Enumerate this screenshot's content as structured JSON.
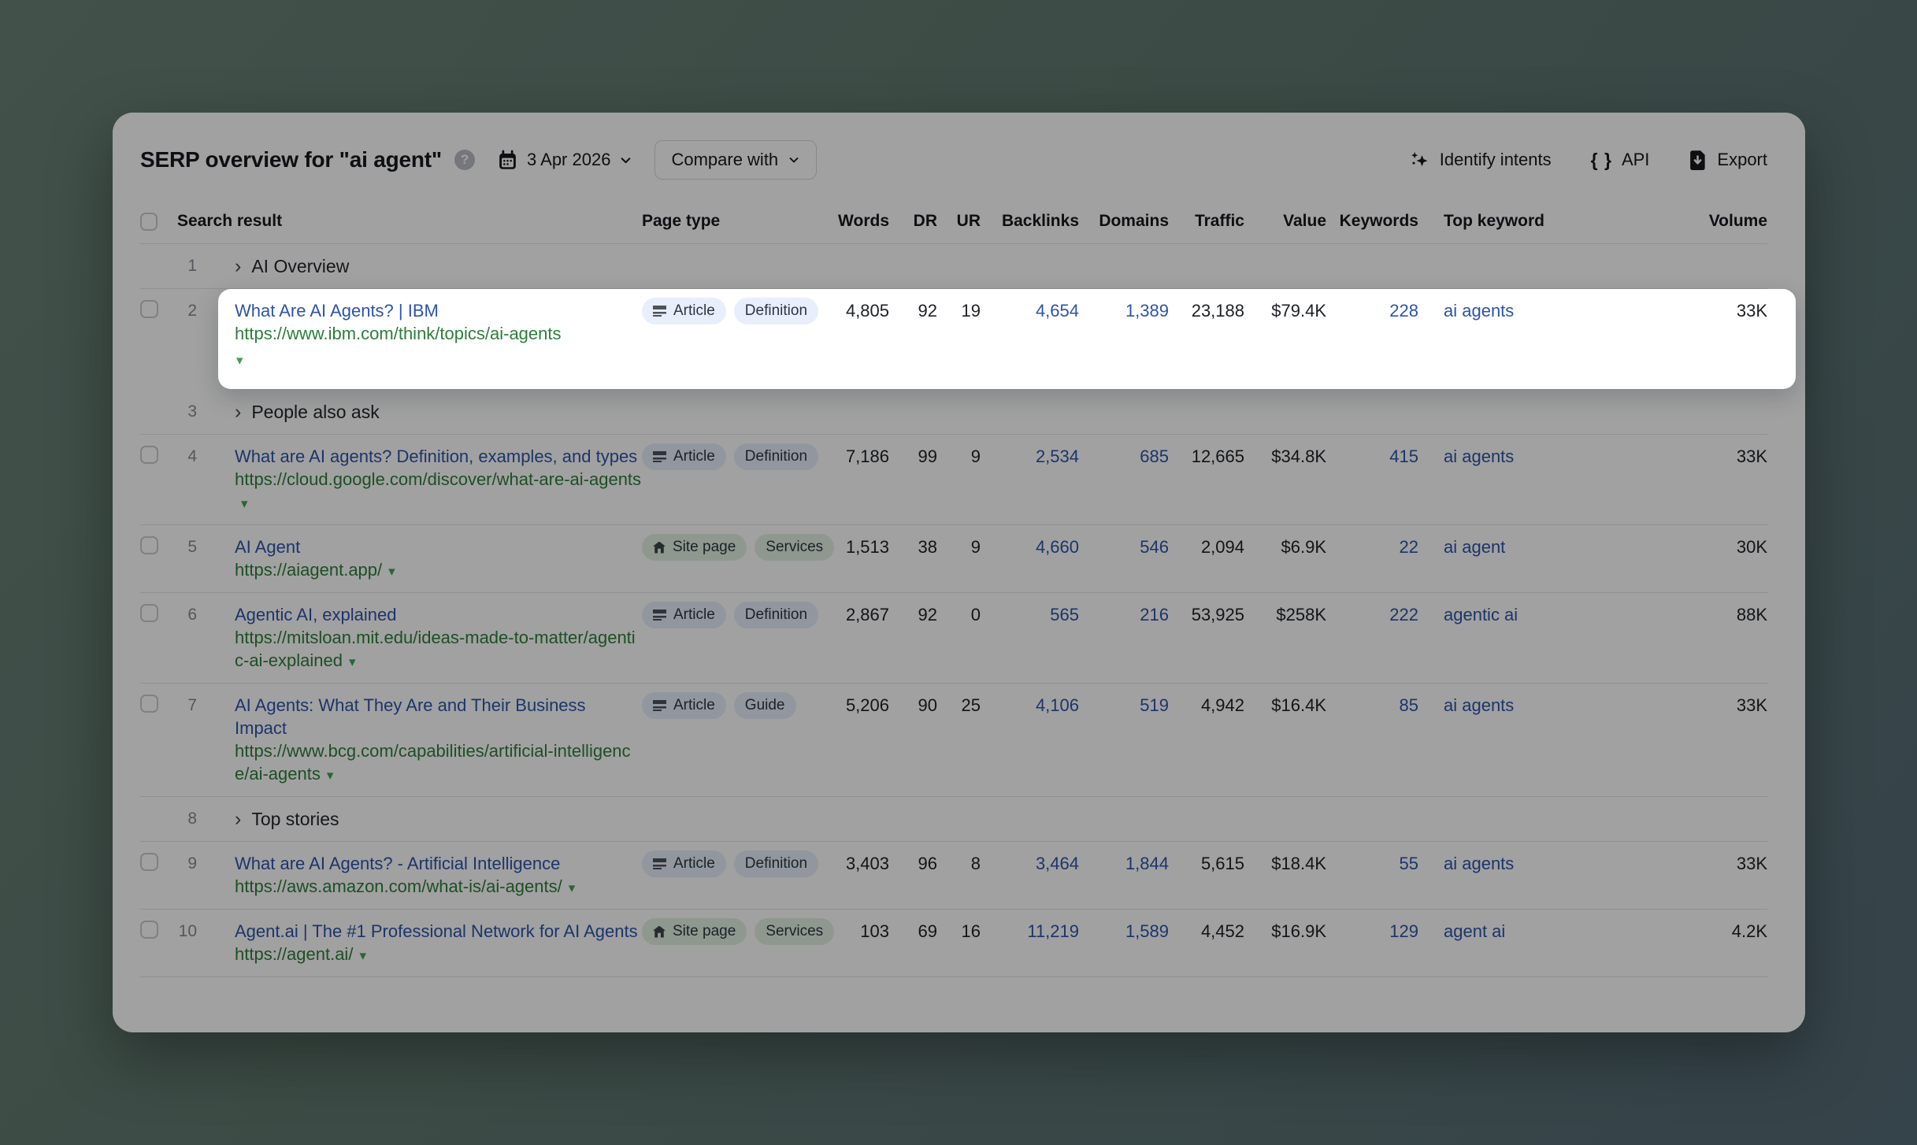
{
  "header": {
    "title": "SERP overview for \"ai agent\"",
    "date": "3 Apr 2026",
    "compare_label": "Compare with",
    "actions": [
      {
        "label": "Identify intents",
        "icon": "sparkles-icon"
      },
      {
        "label": "API",
        "icon": "braces-icon"
      },
      {
        "label": "Export",
        "icon": "export-icon"
      }
    ]
  },
  "table": {
    "columns": [
      "Search result",
      "Page type",
      "Words",
      "DR",
      "UR",
      "Backlinks",
      "Domains",
      "Traffic",
      "Value",
      "Keywords",
      "Top keyword",
      "Volume"
    ],
    "rows": [
      {
        "type": "feature",
        "num": "1",
        "label": "AI Overview"
      },
      {
        "type": "result",
        "num": "2",
        "highlight": true,
        "title": "What Are AI Agents? | IBM",
        "url": "https://www.ibm.com/think/topics/ai-agents",
        "badges": [
          {
            "label": "Article",
            "icon": "article",
            "color": "blue"
          },
          {
            "label": "Definition",
            "color": "blue"
          }
        ],
        "words": "4,805",
        "dr": "92",
        "ur": "19",
        "backlinks": "4,654",
        "domains": "1,389",
        "traffic": "23,188",
        "value": "$79.4K",
        "keywords": "228",
        "top_keyword": "ai agents",
        "volume": "33K"
      },
      {
        "type": "feature",
        "num": "3",
        "label": "People also ask"
      },
      {
        "type": "result",
        "num": "4",
        "title": "What are AI agents? Definition, examples, and types",
        "url": "https://cloud.google.com/discover/what-are-ai-agents",
        "badges": [
          {
            "label": "Article",
            "icon": "article",
            "color": "blue"
          },
          {
            "label": "Definition",
            "color": "blue"
          }
        ],
        "words": "7,186",
        "dr": "99",
        "ur": "9",
        "backlinks": "2,534",
        "domains": "685",
        "traffic": "12,665",
        "value": "$34.8K",
        "keywords": "415",
        "top_keyword": "ai agents",
        "volume": "33K"
      },
      {
        "type": "result",
        "num": "5",
        "title": "AI Agent",
        "url": "https://aiagent.app/",
        "badges": [
          {
            "label": "Site page",
            "icon": "house",
            "color": "green"
          },
          {
            "label": "Services",
            "color": "green"
          }
        ],
        "words": "1,513",
        "dr": "38",
        "ur": "9",
        "backlinks": "4,660",
        "domains": "546",
        "traffic": "2,094",
        "value": "$6.9K",
        "keywords": "22",
        "top_keyword": "ai agent",
        "volume": "30K"
      },
      {
        "type": "result",
        "num": "6",
        "title": "Agentic AI, explained",
        "url": "https://mitsloan.mit.edu/ideas-made-to-matter/agentic-ai-explained",
        "badges": [
          {
            "label": "Article",
            "icon": "article",
            "color": "blue"
          },
          {
            "label": "Definition",
            "color": "blue"
          }
        ],
        "words": "2,867",
        "dr": "92",
        "ur": "0",
        "backlinks": "565",
        "domains": "216",
        "traffic": "53,925",
        "value": "$258K",
        "keywords": "222",
        "top_keyword": "agentic ai",
        "volume": "88K"
      },
      {
        "type": "result",
        "num": "7",
        "title": "AI Agents: What They Are and Their Business Impact",
        "url": "https://www.bcg.com/capabilities/artificial-intelligence/ai-agents",
        "badges": [
          {
            "label": "Article",
            "icon": "article",
            "color": "blue"
          },
          {
            "label": "Guide",
            "color": "blue"
          }
        ],
        "words": "5,206",
        "dr": "90",
        "ur": "25",
        "backlinks": "4,106",
        "domains": "519",
        "traffic": "4,942",
        "value": "$16.4K",
        "keywords": "85",
        "top_keyword": "ai agents",
        "volume": "33K"
      },
      {
        "type": "feature",
        "num": "8",
        "label": "Top stories"
      },
      {
        "type": "result",
        "num": "9",
        "title": "What are AI Agents? - Artificial Intelligence",
        "url": "https://aws.amazon.com/what-is/ai-agents/",
        "badges": [
          {
            "label": "Article",
            "icon": "article",
            "color": "blue"
          },
          {
            "label": "Definition",
            "color": "blue"
          }
        ],
        "words": "3,403",
        "dr": "96",
        "ur": "8",
        "backlinks": "3,464",
        "domains": "1,844",
        "traffic": "5,615",
        "value": "$18.4K",
        "keywords": "55",
        "top_keyword": "ai agents",
        "volume": "33K"
      },
      {
        "type": "result",
        "num": "10",
        "title": "Agent.ai | The #1 Professional Network for AI Agents",
        "url": "https://agent.ai/",
        "badges": [
          {
            "label": "Site page",
            "icon": "house",
            "color": "green"
          },
          {
            "label": "Services",
            "color": "green"
          }
        ],
        "words": "103",
        "dr": "69",
        "ur": "16",
        "backlinks": "11,219",
        "domains": "1,589",
        "traffic": "4,452",
        "value": "$16.9K",
        "keywords": "129",
        "top_keyword": "agent ai",
        "volume": "4.2K"
      }
    ]
  },
  "colors": {
    "link_blue": "#2d54a9",
    "url_green": "#2e7d3b",
    "badge_blue_bg": "#e8eefb",
    "badge_green_bg": "#e3f1e3",
    "backdrop_green": "#3c4b45"
  }
}
